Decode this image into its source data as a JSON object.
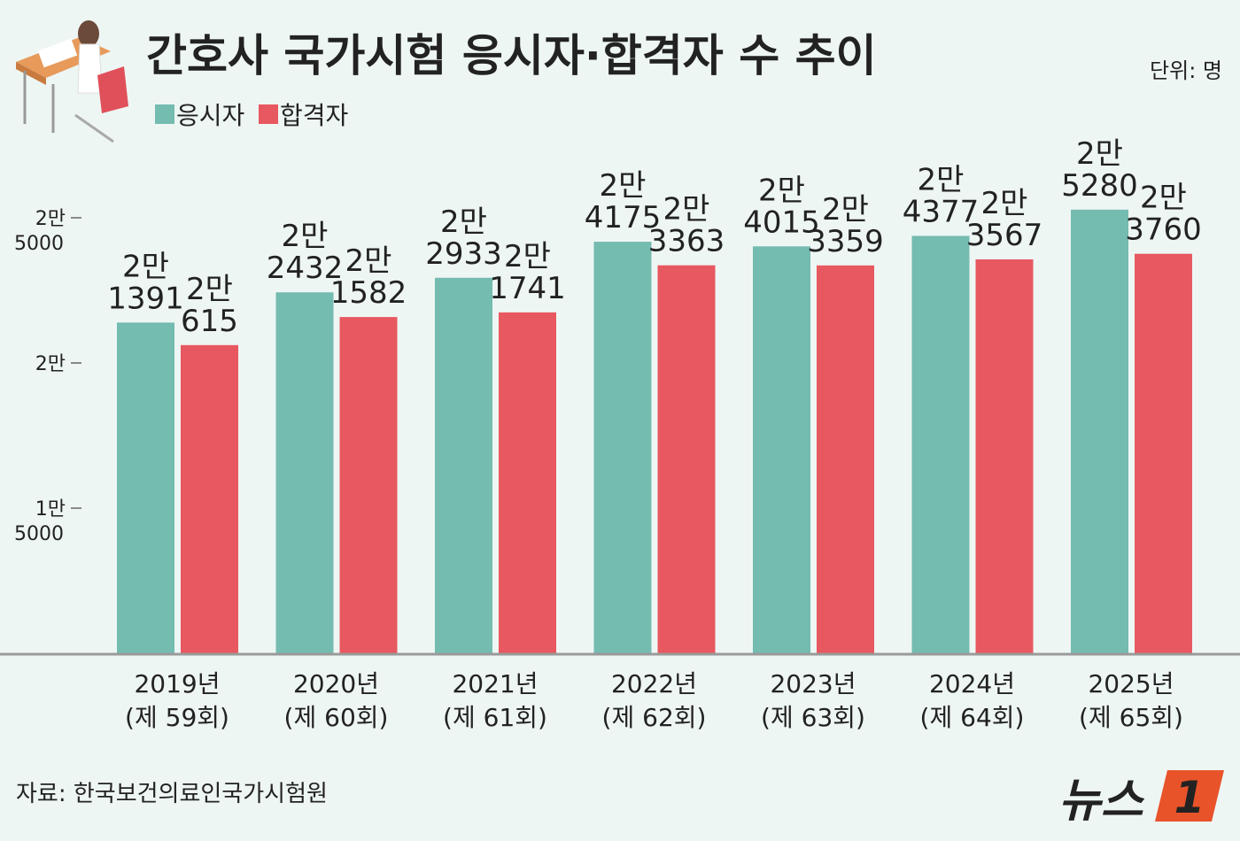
{
  "chart_data": {
    "type": "bar",
    "title": "간호사 국가시험 응시자·합격자 수 추이",
    "unit": "단위: 명",
    "source": "자료: 한국보건의료인국가시험원",
    "categories": [
      "2019년 (제 59회)",
      "2020년 (제 60회)",
      "2021년 (제 61회)",
      "2022년 (제 62회)",
      "2023년 (제 63회)",
      "2024년 (제 64회)",
      "2025년 (제 65회)"
    ],
    "series": [
      {
        "name": "응시자",
        "color": "#74bbb0",
        "values": [
          21391,
          22432,
          22933,
          24175,
          24015,
          24377,
          25280
        ],
        "value_labels": [
          "2만 1391",
          "2만 2432",
          "2만 2933",
          "2만 4175",
          "2만 4015",
          "2만 4377",
          "2만 5280"
        ]
      },
      {
        "name": "합격자",
        "color": "#e85860",
        "values": [
          20615,
          21582,
          21741,
          23363,
          23359,
          23567,
          23760
        ],
        "value_labels": [
          "2만 615",
          "2만 1582",
          "2만 1741",
          "2만 3363",
          "2만 3359",
          "2만 3567",
          "2만 3760"
        ]
      }
    ],
    "ylim": [
      10000,
      27500
    ],
    "yticks": [
      {
        "value": 15000,
        "label": "1만 5000"
      },
      {
        "value": 20000,
        "label": "2만"
      },
      {
        "value": 25000,
        "label": "2만 5000"
      }
    ],
    "logo": {
      "text": "뉴스",
      "mark": "1"
    }
  }
}
